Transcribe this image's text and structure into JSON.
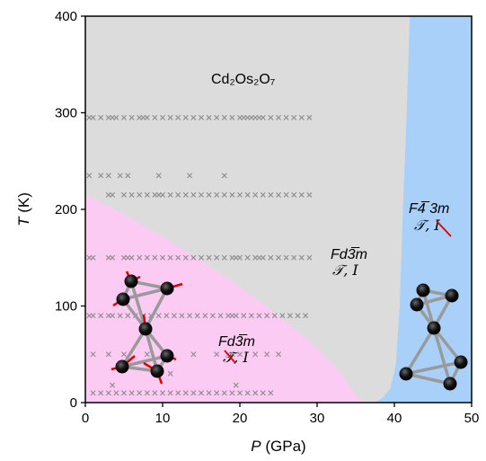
{
  "chart_data": {
    "type": "scatter",
    "title": "",
    "xlabel": {
      "var": "P",
      "unit": " (GPa)"
    },
    "ylabel": {
      "var": "T",
      "unit": " (K)"
    },
    "xlim": [
      0,
      50
    ],
    "ylim": [
      0,
      400
    ],
    "x_ticks": [
      0,
      10,
      20,
      30,
      40,
      50
    ],
    "y_ticks": [
      0,
      100,
      200,
      300,
      400
    ],
    "grid": false,
    "regions": [
      {
        "id": "paramagnetic",
        "color": "#dcdcdc",
        "label": "Cd₂Os₂O₇",
        "group": "Fd3̅m",
        "symmetry": "𝒯, I"
      },
      {
        "id": "ordered",
        "color": "#fbcbf4",
        "group": "Fd3̅m",
        "symmetry": "𝒯, I",
        "boundary": [
          [
            0,
            215
          ],
          [
            5,
            195
          ],
          [
            10,
            172
          ],
          [
            15,
            147
          ],
          [
            20,
            120
          ],
          [
            25,
            90
          ],
          [
            30,
            57
          ],
          [
            33,
            32
          ],
          [
            35,
            8
          ],
          [
            36,
            0
          ]
        ]
      },
      {
        "id": "high-pressure",
        "color": "#a8d0f8",
        "group": "F4̅ 3m",
        "symmetry": "𝒯, I",
        "boundary": [
          [
            37.5,
            0
          ],
          [
            38.5,
            5
          ],
          [
            39.5,
            15
          ],
          [
            40.2,
            40
          ],
          [
            40.7,
            100
          ],
          [
            41.1,
            200
          ],
          [
            41.6,
            300
          ],
          [
            42.0,
            400
          ]
        ]
      }
    ],
    "series": [
      {
        "marker": "x",
        "color": "#8a8a8a",
        "points": [
          [
            0.5,
            295
          ],
          [
            1,
            295
          ],
          [
            2,
            295
          ],
          [
            3,
            295
          ],
          [
            3.5,
            295
          ],
          [
            4,
            295
          ],
          [
            5,
            295
          ],
          [
            6,
            295
          ],
          [
            7,
            295
          ],
          [
            7.5,
            295
          ],
          [
            8,
            295
          ],
          [
            9,
            295
          ],
          [
            10,
            295
          ],
          [
            11,
            295
          ],
          [
            12,
            295
          ],
          [
            13,
            295
          ],
          [
            14,
            295
          ],
          [
            15,
            295
          ],
          [
            16,
            295
          ],
          [
            17,
            295
          ],
          [
            18,
            295
          ],
          [
            19,
            295
          ],
          [
            20,
            295
          ],
          [
            20.5,
            295
          ],
          [
            21,
            295
          ],
          [
            21.5,
            295
          ],
          [
            22,
            295
          ],
          [
            22.5,
            295
          ],
          [
            23,
            295
          ],
          [
            24,
            295
          ],
          [
            25,
            295
          ],
          [
            26,
            295
          ],
          [
            27,
            295
          ],
          [
            28,
            295
          ],
          [
            29,
            295
          ],
          [
            0.5,
            235
          ],
          [
            2,
            235
          ],
          [
            3,
            235
          ],
          [
            4.5,
            235
          ],
          [
            5.5,
            235
          ],
          [
            9.5,
            235
          ],
          [
            13.5,
            235
          ],
          [
            18,
            235
          ],
          [
            3,
            215
          ],
          [
            3.5,
            215
          ],
          [
            5,
            215
          ],
          [
            6,
            215
          ],
          [
            7,
            215
          ],
          [
            8,
            215
          ],
          [
            9,
            215
          ],
          [
            9.5,
            215
          ],
          [
            10,
            215
          ],
          [
            11,
            215
          ],
          [
            12,
            215
          ],
          [
            13,
            215
          ],
          [
            14,
            215
          ],
          [
            15,
            215
          ],
          [
            16,
            215
          ],
          [
            17,
            215
          ],
          [
            18,
            215
          ],
          [
            19,
            215
          ],
          [
            20,
            215
          ],
          [
            21,
            215
          ],
          [
            22,
            215
          ],
          [
            23,
            215
          ],
          [
            24,
            215
          ],
          [
            25,
            215
          ],
          [
            26,
            215
          ],
          [
            27,
            215
          ],
          [
            28,
            215
          ],
          [
            29,
            215
          ],
          [
            0.5,
            150
          ],
          [
            1,
            150
          ],
          [
            3,
            150
          ],
          [
            3.5,
            150
          ],
          [
            5,
            150
          ],
          [
            5.5,
            150
          ],
          [
            6,
            150
          ],
          [
            7,
            150
          ],
          [
            8,
            150
          ],
          [
            9,
            150
          ],
          [
            10,
            150
          ],
          [
            11,
            150
          ],
          [
            12,
            150
          ],
          [
            13,
            150
          ],
          [
            14,
            150
          ],
          [
            15,
            150
          ],
          [
            16,
            150
          ],
          [
            17,
            150
          ],
          [
            18,
            150
          ],
          [
            19,
            150
          ],
          [
            19.5,
            150
          ],
          [
            20,
            150
          ],
          [
            21,
            150
          ],
          [
            22,
            150
          ],
          [
            22.5,
            150
          ],
          [
            23,
            150
          ],
          [
            24,
            150
          ],
          [
            25,
            150
          ],
          [
            26,
            150
          ],
          [
            27,
            150
          ],
          [
            28,
            150
          ],
          [
            29,
            150
          ],
          [
            0.5,
            90
          ],
          [
            1,
            90
          ],
          [
            2,
            90
          ],
          [
            3,
            90
          ],
          [
            3.5,
            90
          ],
          [
            4.5,
            90
          ],
          [
            5.5,
            90
          ],
          [
            6.5,
            90
          ],
          [
            7.5,
            90
          ],
          [
            8.5,
            90
          ],
          [
            9.5,
            90
          ],
          [
            10.5,
            90
          ],
          [
            11.5,
            90
          ],
          [
            12.5,
            90
          ],
          [
            13.5,
            90
          ],
          [
            14.5,
            90
          ],
          [
            15.5,
            90
          ],
          [
            16.5,
            90
          ],
          [
            17.5,
            90
          ],
          [
            18.5,
            90
          ],
          [
            19,
            90
          ],
          [
            19.5,
            90
          ],
          [
            20.5,
            90
          ],
          [
            21.5,
            90
          ],
          [
            22.5,
            90
          ],
          [
            23.5,
            90
          ],
          [
            24.5,
            90
          ],
          [
            25.5,
            90
          ],
          [
            26.5,
            90
          ],
          [
            27.5,
            90
          ],
          [
            28.5,
            90
          ],
          [
            1,
            50
          ],
          [
            3,
            50
          ],
          [
            5,
            50
          ],
          [
            8,
            50
          ],
          [
            11,
            50
          ],
          [
            14,
            50
          ],
          [
            17,
            50
          ],
          [
            19,
            50
          ],
          [
            20,
            50
          ],
          [
            22,
            50
          ],
          [
            23.5,
            50
          ],
          [
            25,
            50
          ],
          [
            1,
            10
          ],
          [
            2,
            10
          ],
          [
            3,
            10
          ],
          [
            4,
            10
          ],
          [
            5,
            10
          ],
          [
            6,
            10
          ],
          [
            7,
            10
          ],
          [
            8,
            10
          ],
          [
            9,
            10
          ],
          [
            10,
            10
          ],
          [
            11,
            10
          ],
          [
            12,
            10
          ],
          [
            13,
            10
          ],
          [
            14,
            10
          ],
          [
            15,
            10
          ],
          [
            16,
            10
          ],
          [
            17,
            10
          ],
          [
            18,
            10
          ],
          [
            19,
            10
          ],
          [
            20,
            10
          ],
          [
            21,
            10
          ],
          [
            22,
            10
          ],
          [
            23,
            10
          ],
          [
            24,
            10
          ],
          [
            3.5,
            18
          ],
          [
            19.5,
            18
          ],
          [
            11,
            30
          ]
        ]
      }
    ]
  }
}
